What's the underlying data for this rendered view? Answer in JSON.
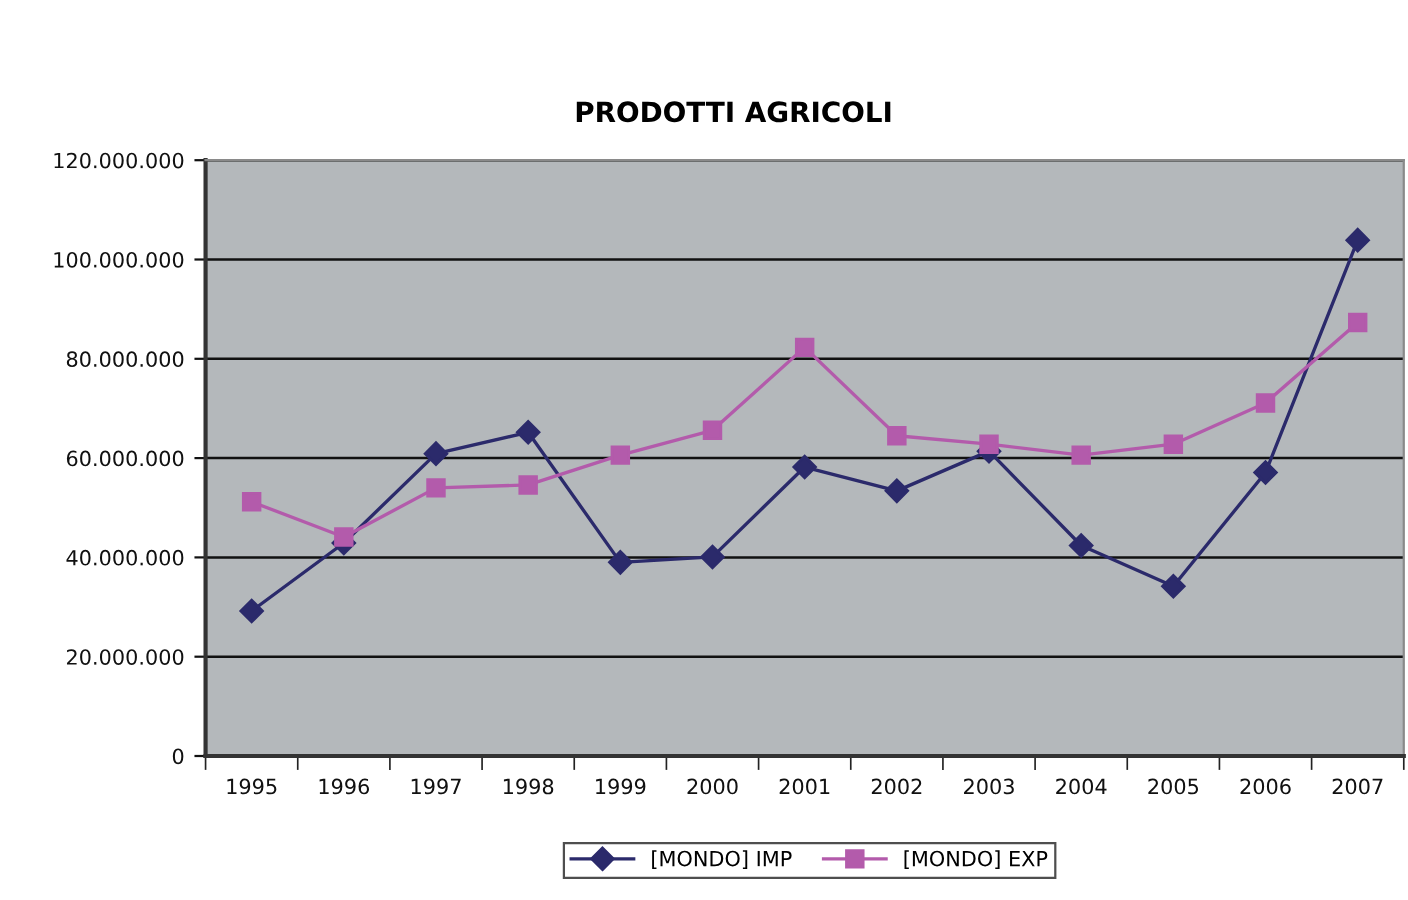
{
  "chart_data": {
    "type": "line",
    "title": "PRODOTTI AGRICOLI",
    "categories": [
      "1995",
      "1996",
      "1997",
      "1998",
      "1999",
      "2000",
      "2001",
      "2002",
      "2003",
      "2004",
      "2005",
      "2006",
      "2007"
    ],
    "series": [
      {
        "name": "[MONDO] IMP",
        "color": "#2b2a6b",
        "marker": "diamond",
        "values": [
          29200000,
          42900000,
          60900000,
          65200000,
          39000000,
          40100000,
          58200000,
          53400000,
          61400000,
          42400000,
          34200000,
          57100000,
          103900000
        ]
      },
      {
        "name": "[MONDO] EXP",
        "color": "#b35bab",
        "marker": "square",
        "values": [
          51200000,
          44100000,
          54000000,
          54600000,
          60600000,
          65600000,
          82300000,
          64500000,
          62800000,
          60600000,
          62800000,
          71100000,
          87300000
        ]
      }
    ],
    "ylim": [
      0,
      120000000
    ],
    "yticks": [
      0,
      {
        "value": 20000000,
        "label": "20.000.000"
      },
      {
        "value": 40000000,
        "label": "40.000.000"
      },
      {
        "value": 60000000,
        "label": "60.000.000"
      },
      {
        "value": 80000000,
        "label": "80.000.000"
      },
      {
        "value": 100000000,
        "label": "100.000.000"
      },
      {
        "value": 120000000,
        "label": "120.000.000"
      }
    ],
    "grid": "y",
    "legend": "bottom",
    "line_style": "solid"
  }
}
